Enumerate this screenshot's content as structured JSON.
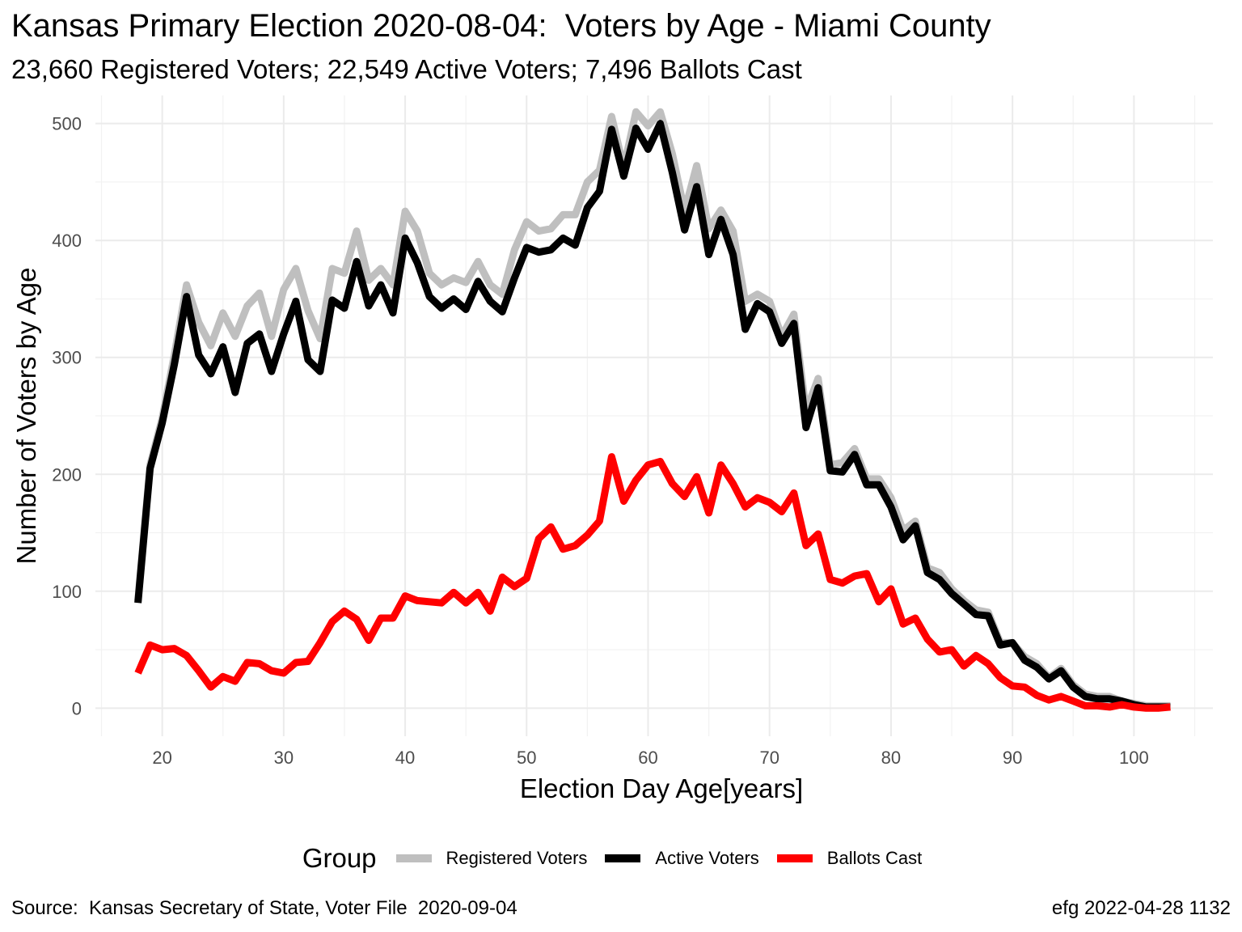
{
  "chart_data": {
    "type": "line",
    "title": "Kansas Primary Election 2020-08-04:  Voters by Age - Miami County",
    "subtitle": "23,660 Registered Voters; 22,549 Active Voters; 7,496 Ballots Cast",
    "xlabel": "Election Day Age[years]",
    "ylabel": "Number of Voters by Age",
    "xlim": [
      14.5,
      106.5
    ],
    "ylim": [
      -24,
      524
    ],
    "xticks": [
      20,
      30,
      40,
      50,
      60,
      70,
      80,
      90,
      100
    ],
    "yticks": [
      0,
      100,
      200,
      300,
      400,
      500
    ],
    "grid": true,
    "legend_position": "bottom",
    "legend_title": "Group",
    "x": [
      18,
      19,
      20,
      21,
      22,
      23,
      24,
      25,
      26,
      27,
      28,
      29,
      30,
      31,
      32,
      33,
      34,
      35,
      36,
      37,
      38,
      39,
      40,
      41,
      42,
      43,
      44,
      45,
      46,
      47,
      48,
      49,
      50,
      51,
      52,
      53,
      54,
      55,
      56,
      57,
      58,
      59,
      60,
      61,
      62,
      63,
      64,
      65,
      66,
      67,
      68,
      69,
      70,
      71,
      72,
      73,
      74,
      75,
      76,
      77,
      78,
      79,
      80,
      81,
      82,
      83,
      84,
      85,
      86,
      87,
      88,
      89,
      90,
      91,
      92,
      93,
      94,
      95,
      96,
      97,
      98,
      99,
      100,
      101,
      102,
      103
    ],
    "series": [
      {
        "name": "Registered Voters",
        "color": "#bfbfbf",
        "values": [
          92,
          208,
          248,
          302,
          362,
          330,
          310,
          338,
          318,
          344,
          355,
          318,
          358,
          376,
          340,
          316,
          376,
          372,
          408,
          366,
          376,
          362,
          425,
          408,
          372,
          362,
          368,
          364,
          382,
          362,
          354,
          392,
          416,
          408,
          410,
          422,
          422,
          450,
          460,
          506,
          462,
          510,
          498,
          510,
          474,
          425,
          464,
          410,
          426,
          408,
          348,
          354,
          348,
          318,
          337,
          254,
          282,
          208,
          210,
          222,
          196,
          196,
          180,
          152,
          160,
          120,
          116,
          102,
          92,
          84,
          82,
          56,
          56,
          44,
          38,
          26,
          34,
          20,
          12,
          10,
          10,
          6,
          4,
          2,
          2,
          2
        ]
      },
      {
        "name": "Active Voters",
        "color": "#000000",
        "values": [
          90,
          205,
          244,
          294,
          352,
          302,
          286,
          309,
          270,
          312,
          320,
          288,
          320,
          348,
          298,
          288,
          349,
          342,
          382,
          344,
          362,
          338,
          402,
          381,
          352,
          342,
          350,
          341,
          365,
          348,
          339,
          368,
          394,
          390,
          392,
          402,
          396,
          428,
          442,
          495,
          455,
          496,
          478,
          500,
          458,
          409,
          446,
          388,
          418,
          388,
          324,
          346,
          339,
          312,
          329,
          240,
          274,
          203,
          202,
          217,
          191,
          191,
          172,
          144,
          156,
          116,
          110,
          98,
          89,
          80,
          79,
          54,
          56,
          41,
          35,
          25,
          32,
          18,
          10,
          8,
          8,
          6,
          3,
          1,
          1,
          1
        ]
      },
      {
        "name": "Ballots Cast",
        "color": "#ff0000",
        "values": [
          30,
          54,
          50,
          51,
          45,
          32,
          18,
          27,
          23,
          39,
          38,
          32,
          30,
          39,
          40,
          56,
          74,
          83,
          76,
          58,
          77,
          77,
          96,
          92,
          91,
          90,
          99,
          90,
          99,
          83,
          112,
          104,
          111,
          145,
          155,
          136,
          139,
          148,
          160,
          215,
          177,
          195,
          208,
          211,
          192,
          181,
          198,
          167,
          208,
          192,
          172,
          180,
          176,
          168,
          184,
          139,
          149,
          110,
          107,
          113,
          115,
          91,
          102,
          72,
          77,
          59,
          48,
          50,
          36,
          45,
          38,
          26,
          19,
          18,
          11,
          7,
          10,
          6,
          2,
          2,
          1,
          3,
          1,
          0,
          0,
          1
        ]
      }
    ]
  },
  "caption_left": "Source:  Kansas Secretary of State, Voter File  2020-09-04",
  "caption_right": "efg 2022-04-28 1132"
}
